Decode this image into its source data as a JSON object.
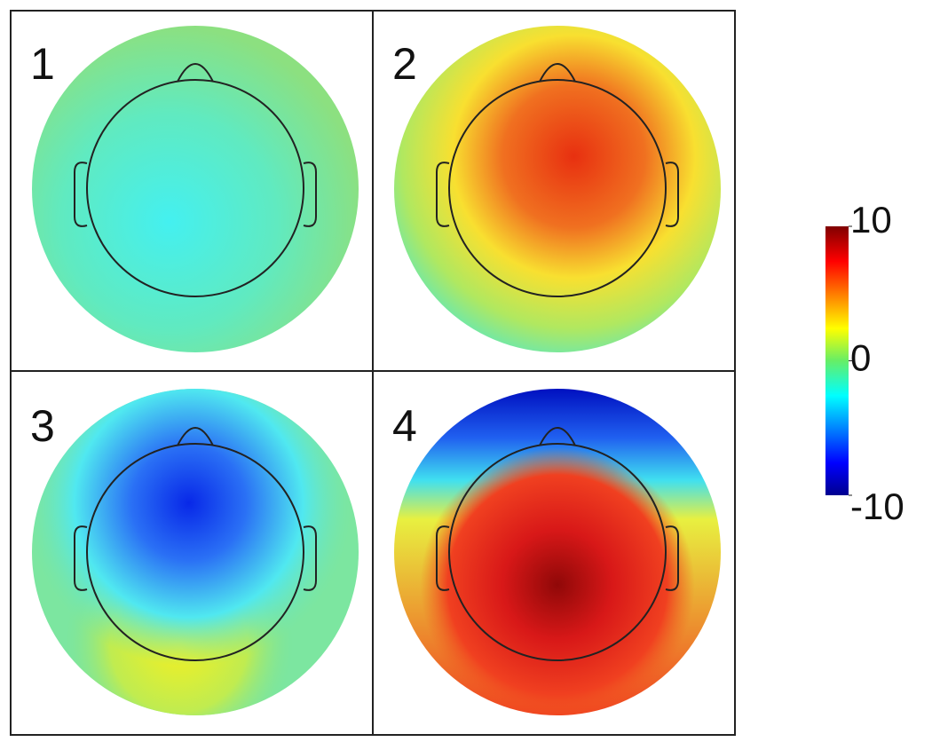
{
  "panels": [
    {
      "label": "1"
    },
    {
      "label": "2"
    },
    {
      "label": "3"
    },
    {
      "label": "4"
    }
  ],
  "colorbar": {
    "lim": [
      -10,
      10
    ],
    "ticks": [
      10,
      0,
      -10
    ]
  }
}
